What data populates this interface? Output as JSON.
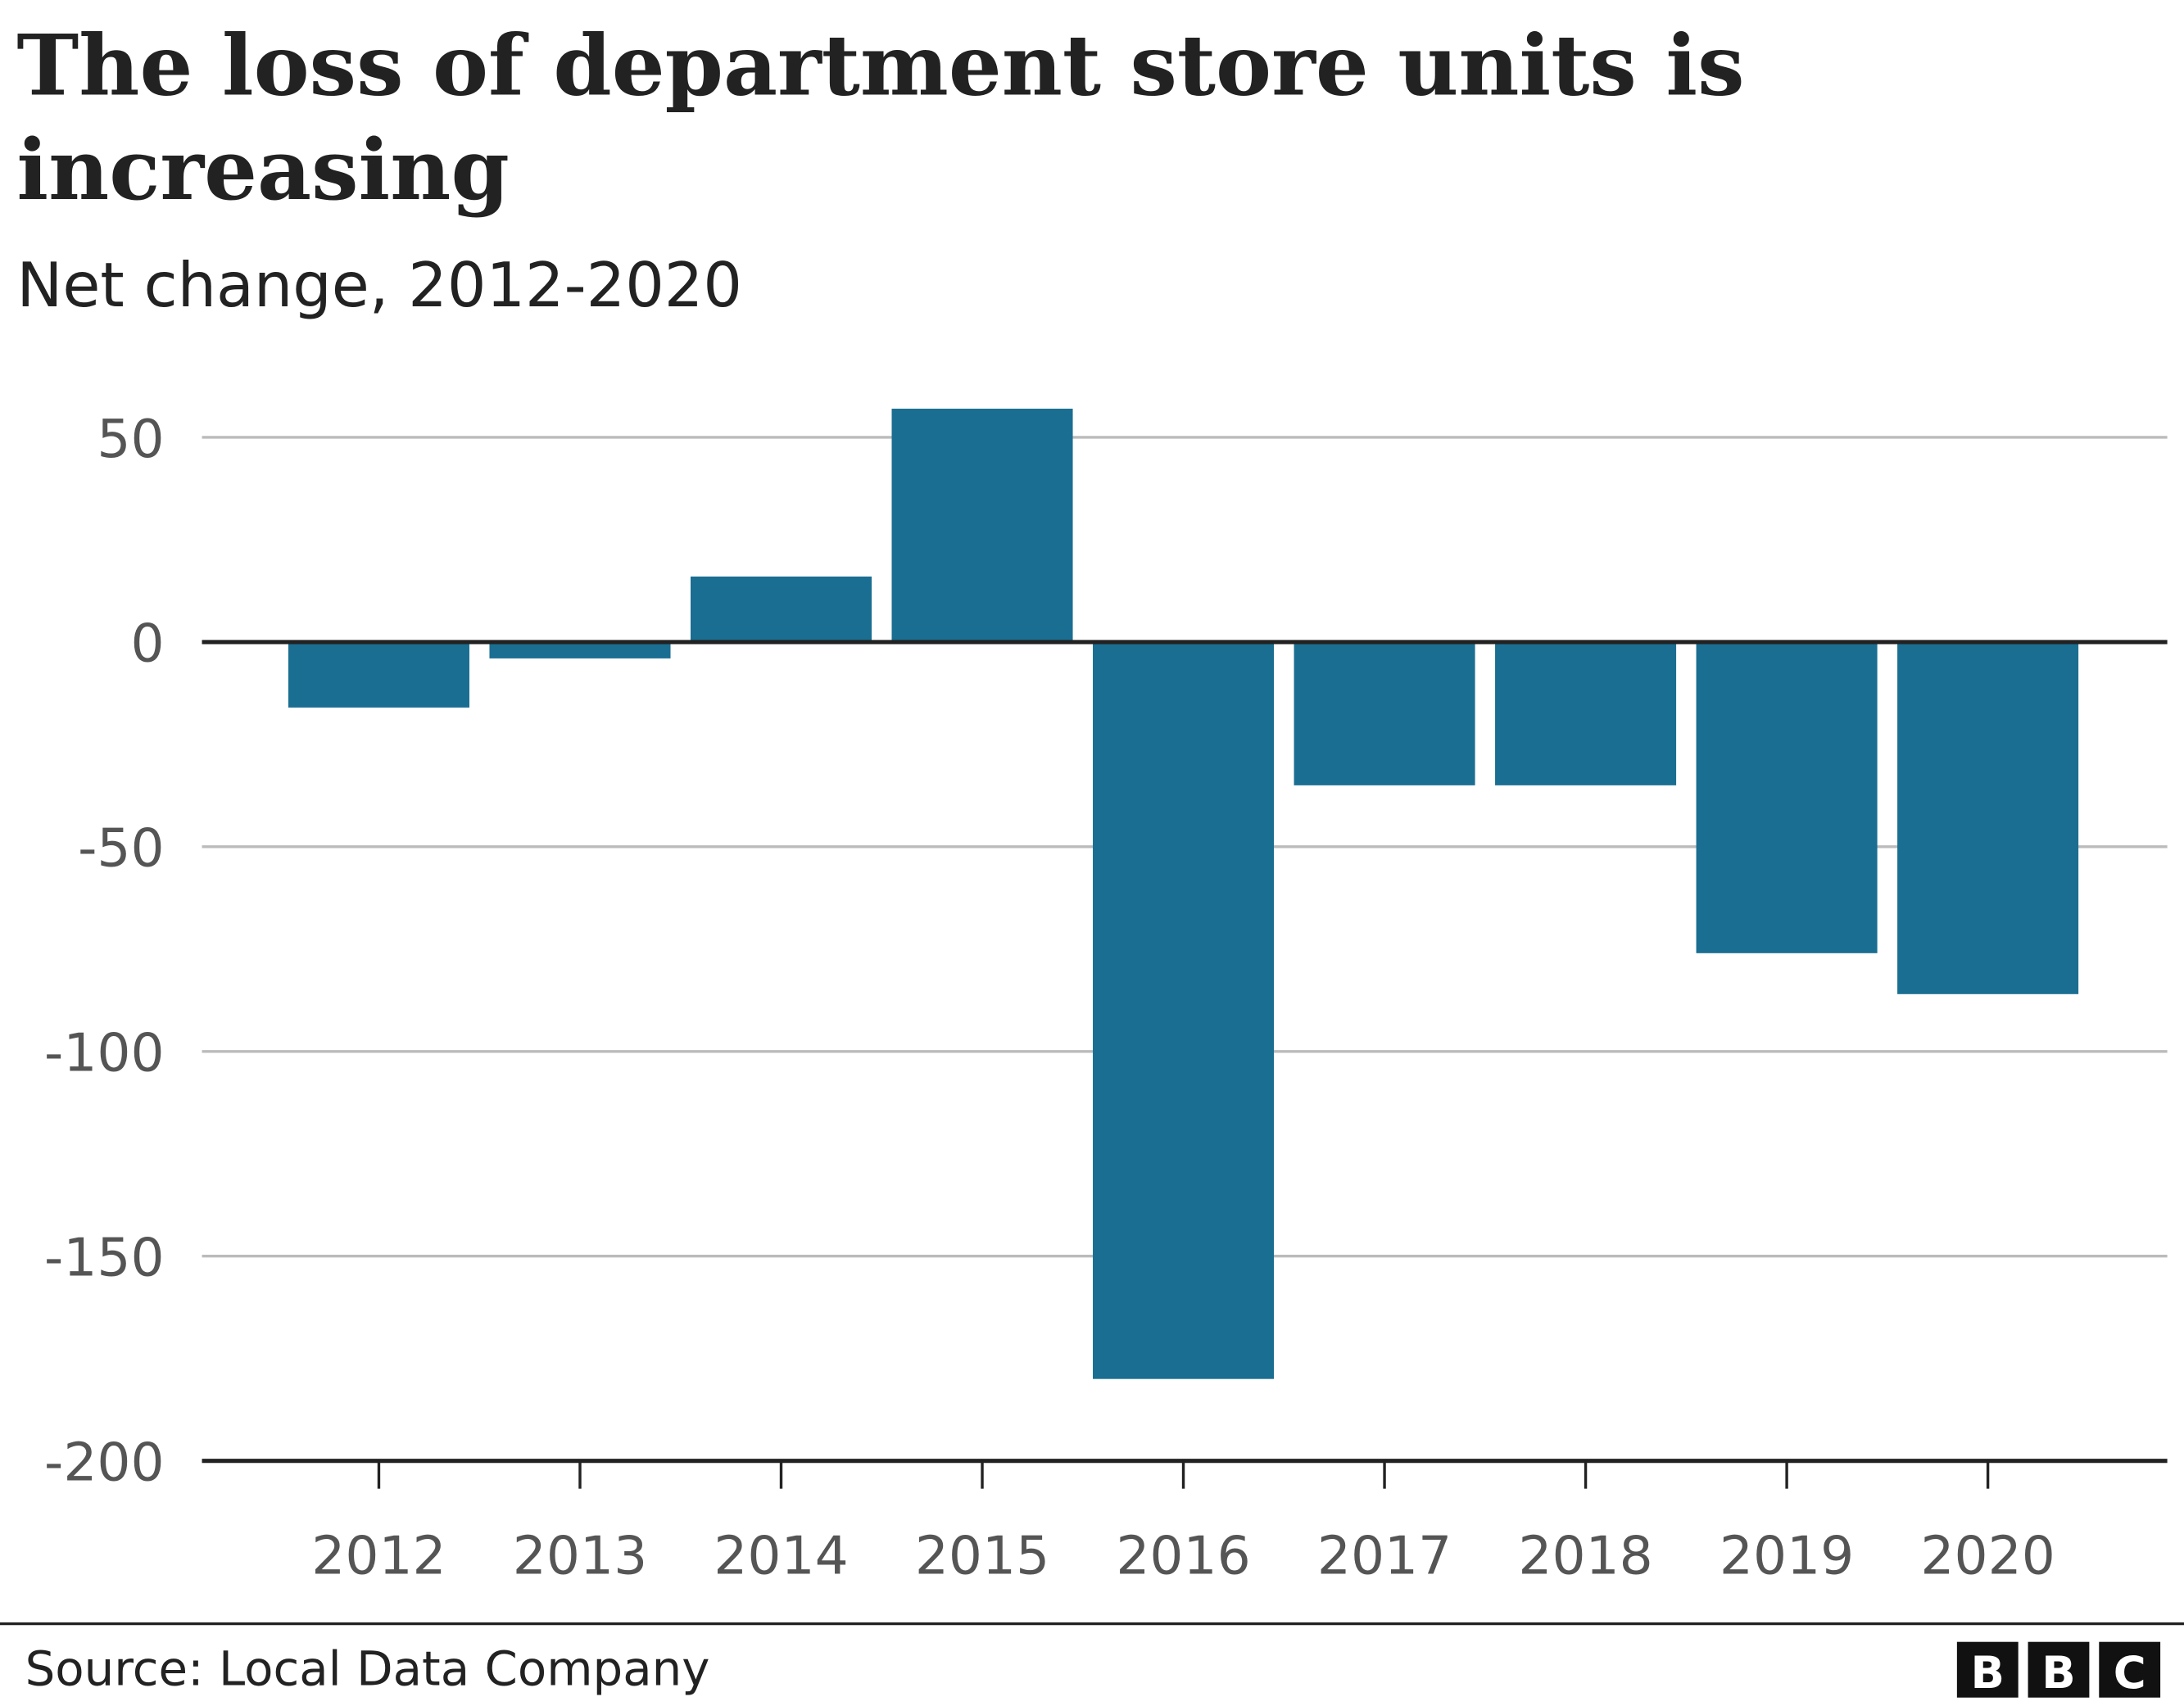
{
  "chart_data": {
    "type": "bar",
    "title": "The loss of department store units is increasing",
    "title_lines": [
      "The loss of department store units is",
      "increasing"
    ],
    "subtitle": "Net change, 2012-2020",
    "categories": [
      "2012",
      "2013",
      "2014",
      "2015",
      "2016",
      "2017",
      "2018",
      "2019",
      "2020"
    ],
    "values": [
      -16,
      -4,
      16,
      57,
      -180,
      -35,
      -35,
      -76,
      -86
    ],
    "ylim": [
      -200,
      50
    ],
    "yticks": [
      50,
      0,
      -50,
      -100,
      -150,
      -200
    ],
    "ytick_labels": [
      "50",
      "0",
      "-50",
      "-100",
      "-150",
      "-200"
    ],
    "grid": true,
    "bar_color": "#1a6e91",
    "source": "Source: Local Data Company",
    "logo": [
      "B",
      "B",
      "C"
    ]
  }
}
